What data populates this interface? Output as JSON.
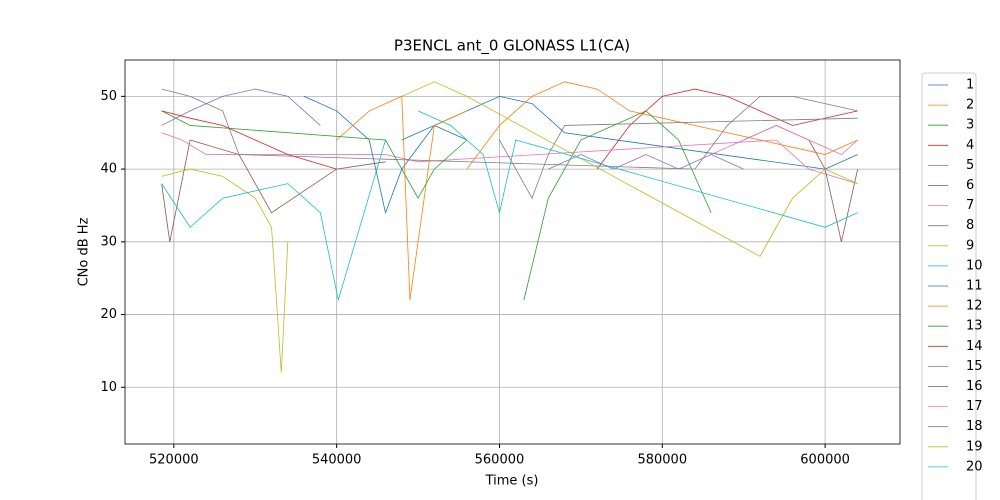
{
  "chart_data": {
    "type": "line",
    "title": "P3ENCL ant_0 GLONASS L1(CA)",
    "xlabel": "Time (s)",
    "ylabel": "CNo dB Hz",
    "xlim": [
      514000,
      609200
    ],
    "ylim": [
      2.2,
      55
    ],
    "xticks": [
      520000,
      540000,
      560000,
      580000,
      600000
    ],
    "yticks": [
      10,
      20,
      30,
      40,
      50
    ],
    "grid": true,
    "legend": "outside right",
    "series": [
      {
        "name": "1",
        "color": "#1f77b4",
        "x": [
          548000,
          552000,
          556000,
          560000,
          564000,
          568000,
          600000,
          604000
        ],
        "values": [
          44,
          46,
          48,
          50,
          49,
          45,
          40,
          42
        ]
      },
      {
        "name": "2",
        "color": "#ff7f0e",
        "x": [
          556000,
          560000,
          564000,
          568000,
          572000,
          576000,
          600000,
          604000
        ],
        "values": [
          40,
          46,
          50,
          52,
          51,
          48,
          42,
          44
        ]
      },
      {
        "name": "3",
        "color": "#2ca02c",
        "x": [
          563000,
          566000,
          570000,
          574000,
          578000,
          582000,
          586000
        ],
        "values": [
          22,
          36,
          44,
          46,
          48,
          44,
          34
        ]
      },
      {
        "name": "4",
        "color": "#d62728",
        "x": [
          572000,
          576000,
          580000,
          584000,
          588000,
          592000,
          596000,
          604000
        ],
        "values": [
          40,
          46,
          50,
          51,
          50,
          48,
          46,
          48
        ]
      },
      {
        "name": "5",
        "color": "#9467bd",
        "x": [
          518500,
          522000,
          526000,
          530000,
          534000,
          538000
        ],
        "values": [
          46,
          48,
          50,
          51,
          50,
          46
        ]
      },
      {
        "name": "6",
        "color": "#8c564b",
        "x": [
          518500,
          519500,
          522000,
          528000,
          532000,
          540000,
          546000
        ],
        "values": [
          38,
          30,
          44,
          42,
          34,
          40,
          41
        ]
      },
      {
        "name": "7",
        "color": "#e377c2",
        "x": [
          518500,
          521000,
          524000,
          546000,
          550000,
          594000,
          598000,
          604000
        ],
        "values": [
          45,
          44,
          42,
          42,
          41,
          44,
          40,
          38
        ]
      },
      {
        "name": "8",
        "color": "#7f7f7f",
        "x": [
          518500,
          522000,
          526000,
          528000,
          584000,
          588000,
          592000,
          596000,
          604000
        ],
        "values": [
          51,
          50,
          48,
          42,
          40,
          46,
          50,
          50,
          48
        ]
      },
      {
        "name": "9",
        "color": "#bcbd22",
        "x": [
          518500,
          522000,
          526000,
          530000,
          532000,
          533200,
          534000
        ],
        "values": [
          39,
          40,
          39,
          36,
          32,
          12,
          30
        ]
      },
      {
        "name": "10",
        "color": "#17becf",
        "x": [
          518500,
          522000,
          526000,
          530000,
          534000,
          538000,
          540200,
          546000
        ],
        "values": [
          38,
          32,
          36,
          37,
          38,
          34,
          22,
          44
        ]
      },
      {
        "name": "11",
        "color": "#1f77b4",
        "x": [
          536000,
          540000,
          544000,
          546000,
          548000,
          552000,
          556000
        ],
        "values": [
          50,
          48,
          44,
          34,
          40,
          46,
          44
        ]
      },
      {
        "name": "12",
        "color": "#ff7f0e",
        "x": [
          540000,
          544000,
          548000,
          549000,
          552000,
          556000
        ],
        "values": [
          44,
          48,
          50,
          22,
          46,
          48
        ]
      },
      {
        "name": "13",
        "color": "#2ca02c",
        "x": [
          518500,
          522000,
          546000,
          550000,
          552000,
          556000
        ],
        "values": [
          48,
          46,
          44,
          36,
          40,
          44
        ]
      },
      {
        "name": "14",
        "color": "#d62728",
        "x": [
          518500,
          522000,
          526000,
          530000,
          534000,
          540000
        ],
        "values": [
          48,
          47,
          46,
          44,
          42,
          40
        ]
      },
      {
        "name": "15",
        "color": "#9467bd",
        "x": [
          566000,
          570000,
          574000,
          578000,
          582000,
          586000,
          590000
        ],
        "values": [
          40,
          42,
          40,
          42,
          40,
          42,
          40
        ]
      },
      {
        "name": "16",
        "color": "#8c564b",
        "x": [
          590000,
          594000,
          598000,
          600000,
          602000,
          604000
        ],
        "values": [
          44,
          46,
          44,
          40,
          30,
          40
        ]
      },
      {
        "name": "17",
        "color": "#e377c2",
        "x": [
          586000,
          590000,
          594000,
          598000,
          602000,
          604000
        ],
        "values": [
          42,
          44,
          46,
          44,
          42,
          44
        ]
      },
      {
        "name": "18",
        "color": "#7f7f7f",
        "x": [
          560000,
          562000,
          564000,
          566000,
          568000,
          604000
        ],
        "values": [
          44,
          40,
          36,
          42,
          46,
          47
        ]
      },
      {
        "name": "19",
        "color": "#bcbd22",
        "x": [
          548000,
          552000,
          556000,
          592000,
          596000,
          600000,
          604000
        ],
        "values": [
          50,
          52,
          50,
          28,
          36,
          40,
          38
        ]
      },
      {
        "name": "20",
        "color": "#17becf",
        "x": [
          550000,
          554000,
          558000,
          560000,
          562000,
          600000,
          604000
        ],
        "values": [
          48,
          46,
          42,
          34,
          44,
          32,
          34
        ]
      }
    ]
  }
}
